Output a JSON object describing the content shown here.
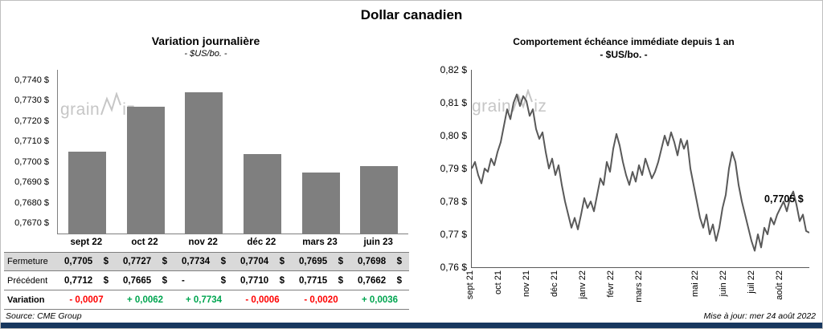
{
  "title": "Dollar canadien",
  "source": "Source: CME Group",
  "updated": "Mise à jour: mer 24 août 2022",
  "watermark": "grainwiz",
  "colors": {
    "bar": "#7f7f7f",
    "line": "#595959",
    "negative": "#ff0000",
    "positive": "#00a550",
    "table_shade": "#d9d9d9",
    "bottom_bar": "#17375e",
    "watermark": "#c6c6c6"
  },
  "chart_data": [
    {
      "type": "bar",
      "title": "Variation  journalière",
      "subtitle": "- $US/bo. -",
      "categories": [
        "sept 22",
        "oct 22",
        "nov 22",
        "déc 22",
        "mars 23",
        "juin 23"
      ],
      "values": [
        0.7705,
        0.7727,
        0.7734,
        0.7704,
        0.7695,
        0.7698
      ],
      "ylim": [
        0.7665,
        0.7745
      ],
      "yticks": [
        "0,7740 $",
        "0,7730 $",
        "0,7720 $",
        "0,7710 $",
        "0,7700 $",
        "0,7690 $",
        "0,7680 $",
        "0,7670 $"
      ],
      "ytick_values": [
        0.774,
        0.773,
        0.772,
        0.771,
        0.77,
        0.769,
        0.768,
        0.767
      ],
      "grid": false,
      "legend": false
    },
    {
      "type": "line",
      "title": "Comportement échéance immédiate depuis 1 an",
      "subtitle": "- $US/bo. -",
      "ylim": [
        0.76,
        0.82
      ],
      "yticks": [
        "0,82 $",
        "0,81 $",
        "0,80 $",
        "0,79 $",
        "0,78 $",
        "0,77 $",
        "0,76 $"
      ],
      "x_labels": [
        "sept 21",
        "oct 21",
        "nov 21",
        "déc 21",
        "janv 22",
        "févr 22",
        "mars 22",
        "mai 22",
        "juin 22",
        "juil 22",
        "août 22"
      ],
      "x_label_month_positions": [
        0,
        1,
        2,
        3,
        4,
        5,
        6,
        8,
        9,
        10,
        11
      ],
      "months_total": 12,
      "annotation": "0,7705 $",
      "last_value": 0.7705,
      "grid": false,
      "legend": false,
      "values": [
        0.79,
        0.792,
        0.788,
        0.7855,
        0.79,
        0.789,
        0.793,
        0.791,
        0.795,
        0.798,
        0.803,
        0.808,
        0.805,
        0.81,
        0.8125,
        0.809,
        0.812,
        0.8105,
        0.806,
        0.808,
        0.802,
        0.799,
        0.801,
        0.795,
        0.79,
        0.793,
        0.788,
        0.791,
        0.785,
        0.78,
        0.776,
        0.772,
        0.775,
        0.7715,
        0.776,
        0.781,
        0.778,
        0.78,
        0.777,
        0.782,
        0.787,
        0.785,
        0.792,
        0.789,
        0.796,
        0.8005,
        0.797,
        0.792,
        0.788,
        0.785,
        0.789,
        0.786,
        0.791,
        0.788,
        0.793,
        0.79,
        0.787,
        0.789,
        0.792,
        0.796,
        0.8,
        0.797,
        0.801,
        0.798,
        0.794,
        0.799,
        0.796,
        0.7985,
        0.79,
        0.785,
        0.78,
        0.775,
        0.772,
        0.776,
        0.77,
        0.773,
        0.768,
        0.772,
        0.778,
        0.782,
        0.79,
        0.795,
        0.792,
        0.785,
        0.78,
        0.776,
        0.772,
        0.768,
        0.765,
        0.77,
        0.766,
        0.772,
        0.77,
        0.775,
        0.773,
        0.776,
        0.778,
        0.78,
        0.777,
        0.781,
        0.783,
        0.779,
        0.774,
        0.776,
        0.771,
        0.7705
      ]
    }
  ],
  "table": {
    "unit": "$",
    "rows": [
      {
        "label": "Fermeture",
        "values": [
          "0,7705",
          "0,7727",
          "0,7734",
          "0,7704",
          "0,7695",
          "0,7698"
        ],
        "unit": "$",
        "shaded": true,
        "bold_label": false
      },
      {
        "label": "Précédent",
        "values": [
          "0,7712",
          "0,7665",
          "-",
          "0,7710",
          "0,7715",
          "0,7662"
        ],
        "unit": "$",
        "shaded": false,
        "bold_label": false
      },
      {
        "label": "Variation",
        "values": [
          "- 0,0007",
          "+ 0,0062",
          "+ 0,7734",
          "- 0,0006",
          "- 0,0020",
          "+ 0,0036"
        ],
        "unit": "",
        "shaded": false,
        "bold_label": true,
        "colored": true
      }
    ]
  }
}
